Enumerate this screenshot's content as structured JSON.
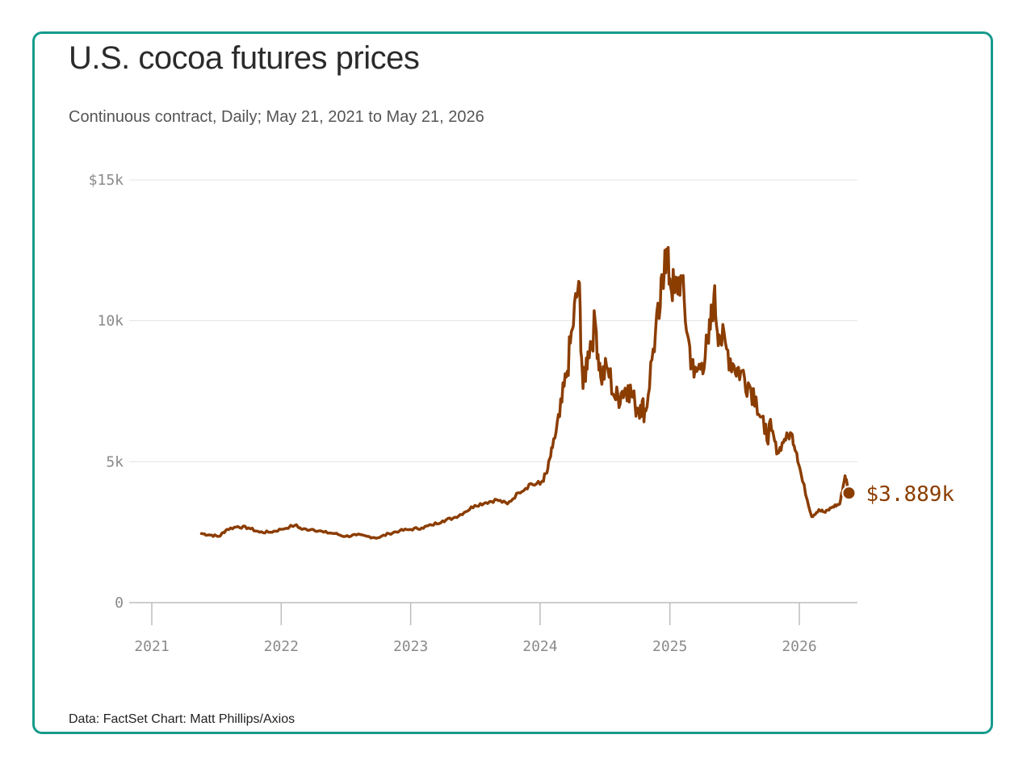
{
  "title": "U.S. cocoa futures prices",
  "subtitle": "Continuous contract, Daily; May 21, 2021 to May 21, 2026",
  "footer": "Data: FactSet Chart: Matt Phillips/Axios",
  "colors": {
    "frame": "#169b8c",
    "line": "#8b3d00",
    "grid": "#e3e3e3",
    "axis_text": "#8a8a8a"
  },
  "chart_data": {
    "type": "line",
    "title": "U.S. cocoa futures prices",
    "subtitle": "Continuous contract, Daily; May 21, 2021 to May 21, 2026",
    "xlabel": "",
    "ylabel": "",
    "xlim": [
      "2021-01-01",
      "2026-06-15"
    ],
    "ylim": [
      0,
      15000
    ],
    "x_ticks": [
      {
        "date": "2021-01-01",
        "label": "2021"
      },
      {
        "date": "2022-01-01",
        "label": "2022"
      },
      {
        "date": "2023-01-01",
        "label": "2023"
      },
      {
        "date": "2024-01-01",
        "label": "2024"
      },
      {
        "date": "2025-01-01",
        "label": "2025"
      },
      {
        "date": "2026-01-01",
        "label": "2026"
      }
    ],
    "y_ticks": [
      {
        "value": 0,
        "label": "0"
      },
      {
        "value": 5000,
        "label": "5k"
      },
      {
        "value": 10000,
        "label": "10k"
      },
      {
        "value": 15000,
        "label": "$15k"
      }
    ],
    "grid": true,
    "end_label": "$3.889k",
    "series": [
      {
        "values": [
          [
            "2021-05-21",
            2450
          ],
          [
            "2021-06-15",
            2400
          ],
          [
            "2021-07-10",
            2350
          ],
          [
            "2021-08-01",
            2600
          ],
          [
            "2021-09-01",
            2700
          ],
          [
            "2021-10-01",
            2650
          ],
          [
            "2021-11-01",
            2500
          ],
          [
            "2021-12-01",
            2500
          ],
          [
            "2022-01-01",
            2600
          ],
          [
            "2022-02-10",
            2750
          ],
          [
            "2022-03-01",
            2600
          ],
          [
            "2022-04-01",
            2600
          ],
          [
            "2022-05-01",
            2500
          ],
          [
            "2022-06-01",
            2450
          ],
          [
            "2022-07-01",
            2350
          ],
          [
            "2022-08-01",
            2400
          ],
          [
            "2022-09-01",
            2350
          ],
          [
            "2022-10-01",
            2300
          ],
          [
            "2022-11-01",
            2450
          ],
          [
            "2022-12-01",
            2550
          ],
          [
            "2023-01-01",
            2600
          ],
          [
            "2023-02-01",
            2650
          ],
          [
            "2023-03-01",
            2750
          ],
          [
            "2023-04-01",
            2900
          ],
          [
            "2023-05-01",
            3000
          ],
          [
            "2023-06-01",
            3200
          ],
          [
            "2023-07-01",
            3450
          ],
          [
            "2023-08-01",
            3550
          ],
          [
            "2023-09-01",
            3650
          ],
          [
            "2023-10-01",
            3500
          ],
          [
            "2023-11-01",
            3900
          ],
          [
            "2023-12-01",
            4200
          ],
          [
            "2024-01-01",
            4200
          ],
          [
            "2024-01-20",
            4600
          ],
          [
            "2024-02-05",
            5500
          ],
          [
            "2024-02-25",
            6600
          ],
          [
            "2024-03-15",
            8000
          ],
          [
            "2024-04-01",
            9700
          ],
          [
            "2024-04-19",
            11400
          ],
          [
            "2024-05-01",
            7600
          ],
          [
            "2024-05-15",
            8900
          ],
          [
            "2024-06-05",
            9900
          ],
          [
            "2024-06-20",
            8000
          ],
          [
            "2024-07-10",
            8300
          ],
          [
            "2024-08-01",
            7200
          ],
          [
            "2024-08-20",
            7500
          ],
          [
            "2024-09-05",
            7700
          ],
          [
            "2024-09-25",
            7000
          ],
          [
            "2024-10-10",
            7000
          ],
          [
            "2024-10-25",
            6800
          ],
          [
            "2024-11-15",
            9000
          ],
          [
            "2024-12-05",
            10500
          ],
          [
            "2024-12-18",
            12500
          ],
          [
            "2025-01-01",
            11500
          ],
          [
            "2025-01-15",
            11000
          ],
          [
            "2025-02-01",
            11600
          ],
          [
            "2025-02-20",
            9500
          ],
          [
            "2025-03-10",
            8000
          ],
          [
            "2025-04-01",
            8500
          ],
          [
            "2025-04-20",
            9200
          ],
          [
            "2025-05-05",
            10900
          ],
          [
            "2025-05-20",
            9500
          ],
          [
            "2025-06-10",
            9000
          ],
          [
            "2025-07-01",
            8400
          ],
          [
            "2025-07-20",
            8200
          ],
          [
            "2025-08-10",
            7800
          ],
          [
            "2025-09-01",
            7300
          ],
          [
            "2025-09-25",
            6000
          ],
          [
            "2025-10-15",
            6100
          ],
          [
            "2025-11-01",
            5300
          ],
          [
            "2025-11-20",
            5800
          ],
          [
            "2025-12-10",
            6000
          ],
          [
            "2025-12-25",
            5300
          ],
          [
            "2026-01-10",
            4300
          ],
          [
            "2026-02-05",
            3050
          ],
          [
            "2026-02-25",
            3300
          ],
          [
            "2026-03-15",
            3200
          ],
          [
            "2026-04-05",
            3400
          ],
          [
            "2026-04-25",
            3500
          ],
          [
            "2026-05-10",
            4500
          ],
          [
            "2026-05-21",
            3889
          ]
        ]
      }
    ]
  }
}
